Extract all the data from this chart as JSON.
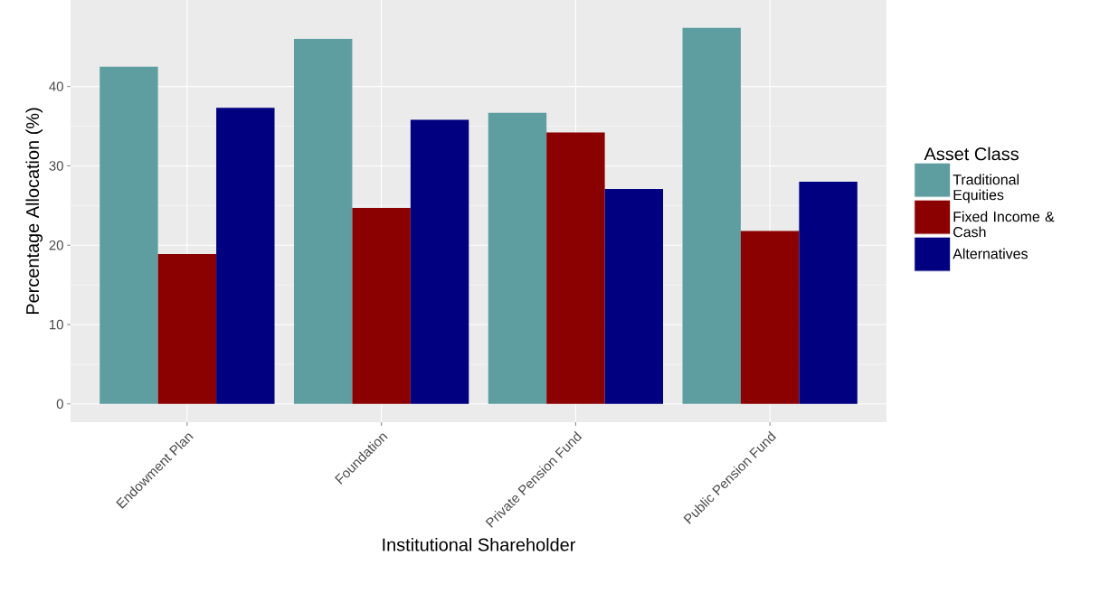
{
  "chart_data": {
    "type": "bar",
    "xlabel": "Institutional Shareholder",
    "ylabel": "Percentage Allocation (%)",
    "legend_title": "Asset Class",
    "categories": [
      "Endowment Plan",
      "Foundation",
      "Private Pension Fund",
      "Public Pension Fund"
    ],
    "series": [
      {
        "name": "Traditional Equities",
        "color": "#5f9ea0",
        "values": [
          42.5,
          46.0,
          36.7,
          47.4
        ]
      },
      {
        "name": "Fixed Income & Cash",
        "color": "#8b0000",
        "values": [
          18.9,
          24.7,
          34.2,
          21.8
        ]
      },
      {
        "name": "Alternatives",
        "color": "#000080",
        "values": [
          37.3,
          35.8,
          27.1,
          28.0
        ]
      }
    ],
    "ylim": [
      -2.3,
      50.9
    ],
    "yticks": [
      0,
      10,
      20,
      30,
      40
    ],
    "grid": true,
    "legend": "right"
  }
}
